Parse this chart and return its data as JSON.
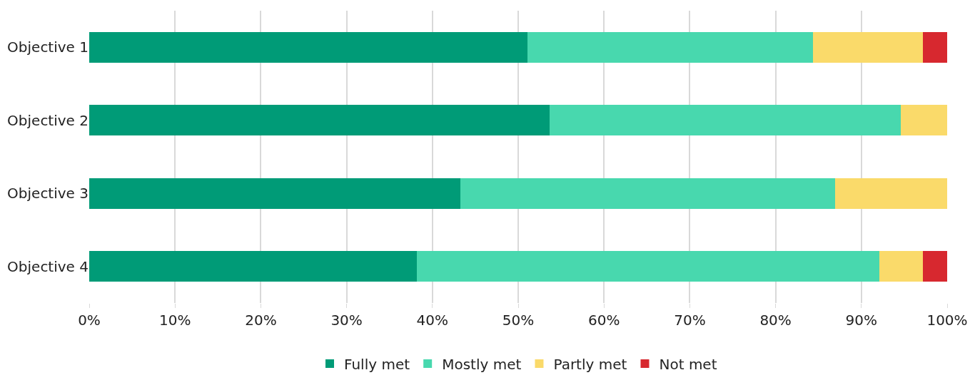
{
  "chart_data": {
    "type": "bar",
    "orientation": "horizontal",
    "stacked": true,
    "categories": [
      "Objective 1",
      "Objective 2",
      "Objective 3",
      "Objective 4"
    ],
    "series": [
      {
        "name": "Fully met",
        "color": "#009b77",
        "values": [
          51.1,
          53.7,
          43.3,
          38.2
        ]
      },
      {
        "name": "Mostly met",
        "color": "#48d8ae",
        "values": [
          33.3,
          40.9,
          43.6,
          53.9
        ]
      },
      {
        "name": "Partly met",
        "color": "#fada6a",
        "values": [
          12.8,
          5.4,
          13.1,
          5.1
        ]
      },
      {
        "name": "Not met",
        "color": "#d7282f",
        "values": [
          2.8,
          0,
          0,
          2.8
        ]
      }
    ],
    "xlim": [
      0,
      100
    ],
    "xticks": [
      {
        "value": 0,
        "label": "0%"
      },
      {
        "value": 10,
        "label": "10%"
      },
      {
        "value": 20,
        "label": "20%"
      },
      {
        "value": 30,
        "label": "30%"
      },
      {
        "value": 40,
        "label": "40%"
      },
      {
        "value": 50,
        "label": "50%"
      },
      {
        "value": 60,
        "label": "60%"
      },
      {
        "value": 70,
        "label": "70%"
      },
      {
        "value": 80,
        "label": "80%"
      },
      {
        "value": 90,
        "label": "90%"
      },
      {
        "value": 100,
        "label": "100%"
      }
    ],
    "grid": "x",
    "legend": "bottom"
  }
}
